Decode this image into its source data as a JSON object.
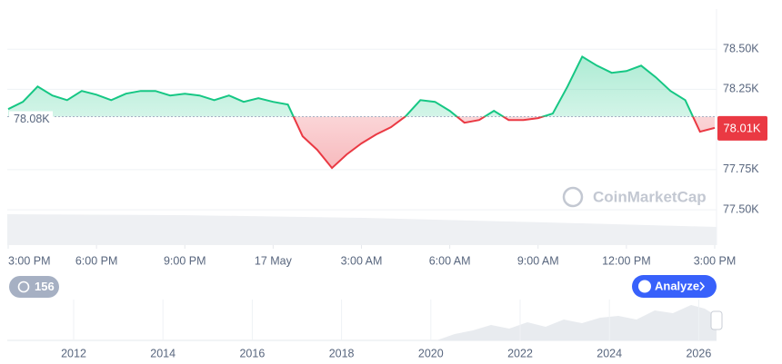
{
  "chart_data": {
    "type": "line",
    "x": [
      0,
      0.5,
      1,
      1.5,
      2,
      2.5,
      3,
      3.5,
      4,
      4.5,
      5,
      5.5,
      6,
      6.5,
      7,
      7.5,
      8,
      8.5,
      9,
      9.5,
      10,
      10.5,
      11,
      11.5,
      12,
      12.5,
      13,
      13.5,
      14,
      14.5,
      15,
      15.5,
      16,
      16.5,
      17,
      17.5,
      18,
      18.5,
      19,
      19.5,
      20,
      20.5,
      21,
      21.5,
      22,
      22.5,
      23,
      23.5,
      24
    ],
    "values": [
      78127,
      78172,
      78268,
      78212,
      78183,
      78240,
      78217,
      78183,
      78223,
      78240,
      78240,
      78212,
      78223,
      78212,
      78183,
      78212,
      78172,
      78195,
      78172,
      78155,
      77958,
      77873,
      77760,
      77845,
      77913,
      77969,
      78014,
      78082,
      78183,
      78172,
      78116,
      78042,
      78059,
      78116,
      78059,
      78059,
      78071,
      78099,
      78268,
      78454,
      78398,
      78353,
      78364,
      78398,
      78325,
      78240,
      78183,
      77986,
      78010
    ],
    "xlim": [
      0,
      24
    ],
    "ylim": [
      77280,
      78750
    ],
    "yticks": [
      {
        "value": 77500,
        "label": "77.50K"
      },
      {
        "value": 77750,
        "label": "77.75K"
      },
      {
        "value": 78250,
        "label": "78.25K"
      },
      {
        "value": 78500,
        "label": "78.50K"
      }
    ],
    "xticks": [
      {
        "value": 0,
        "label": "3:00 PM"
      },
      {
        "value": 3,
        "label": "6:00 PM"
      },
      {
        "value": 6,
        "label": "9:00 PM"
      },
      {
        "value": 9,
        "label": "17 May"
      },
      {
        "value": 12,
        "label": "3:00 AM"
      },
      {
        "value": 15,
        "label": "6:00 AM"
      },
      {
        "value": 18,
        "label": "9:00 AM"
      },
      {
        "value": 21,
        "label": "12:00 PM"
      },
      {
        "value": 24,
        "label": "3:00 PM"
      }
    ],
    "reference_line": {
      "value": 78080,
      "label": "78.08K"
    },
    "last_price": {
      "value": 78010,
      "label": "78.01K"
    },
    "color_above": "#16c784",
    "color_below": "#ea3943",
    "grid": true
  },
  "watermark": "CoinMarketCap",
  "history_button": "156",
  "analyze_button": "Analyze",
  "navigator": {
    "labels": [
      "2012",
      "2014",
      "2016",
      "2018",
      "2020",
      "2022",
      "2024",
      "2026"
    ]
  }
}
